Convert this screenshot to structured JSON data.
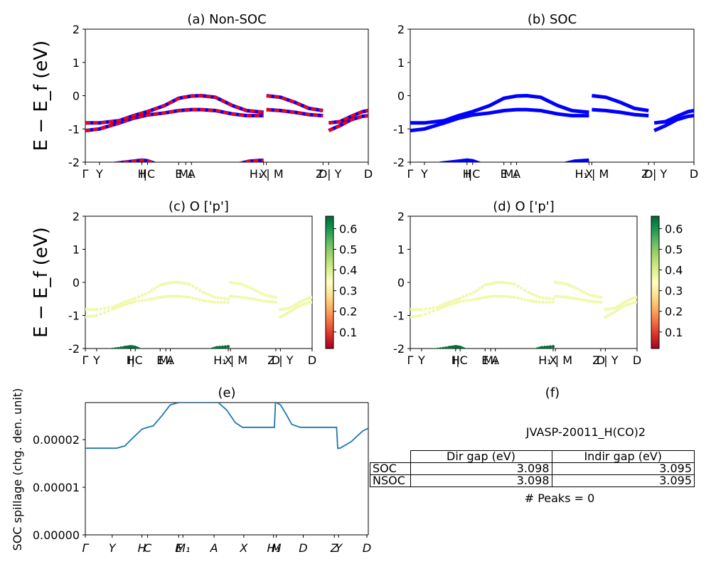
{
  "colors": {
    "blue": "#0000ff",
    "red": "#ff0000",
    "line": "#1f77b4"
  },
  "chart_data": [
    {
      "id": "a",
      "type": "line",
      "title": "(a) Non-SOC",
      "ylabel": "E − E_f (eV)",
      "ylim": [
        -2,
        2
      ],
      "yticks": [
        -2,
        -1,
        0,
        1,
        2
      ],
      "xlim": [
        0,
        10
      ],
      "xticks": [
        {
          "x": 0,
          "label": "Γ"
        },
        {
          "x": 0.5,
          "label": "Y"
        },
        {
          "x": 2.0,
          "label": "H"
        },
        {
          "x": 2.2,
          "label": "I|C"
        },
        {
          "x": 3.3,
          "label": "E"
        },
        {
          "x": 3.55,
          "label": "M₁"
        },
        {
          "x": 3.75,
          "label": "A"
        },
        {
          "x": 6.3,
          "label": "X"
        },
        {
          "x": 6.4,
          "label": "H₁ | M"
        },
        {
          "x": 8.4,
          "label": "D"
        },
        {
          "x": 8.6,
          "label": "Z | Y"
        },
        {
          "x": 10,
          "label": "D"
        }
      ],
      "segments": [
        {
          "x0": 0,
          "x1": 6.3,
          "series": [
            {
              "name": "band-1",
              "x": [
                0,
                0.5,
                1.2,
                1.7,
                2.2,
                2.8,
                3.3,
                3.75,
                4.1,
                4.6,
                5.2,
                5.7,
                6.3
              ],
              "y": [
                -1.05,
                -1.0,
                -0.82,
                -0.68,
                -0.58,
                -0.52,
                -0.45,
                -0.42,
                -0.42,
                -0.45,
                -0.55,
                -0.6,
                -0.6
              ]
            },
            {
              "name": "band-2",
              "x": [
                0,
                0.5,
                1.2,
                1.7,
                2.2,
                2.8,
                3.3,
                3.75,
                4.1,
                4.6,
                5.2,
                5.7,
                6.3
              ],
              "y": [
                -0.82,
                -0.82,
                -0.75,
                -0.6,
                -0.48,
                -0.3,
                -0.08,
                -0.01,
                0.0,
                -0.05,
                -0.3,
                -0.45,
                -0.5
              ]
            },
            {
              "name": "band-3",
              "x": [
                0,
                0.5,
                1.2,
                1.7,
                2.0,
                2.2,
                2.5
              ],
              "y": [
                -2.2,
                -2.1,
                -2.02,
                -1.97,
                -1.94,
                -1.96,
                -2.05
              ]
            },
            {
              "name": "band-4",
              "x": [
                5.4,
                5.8,
                6.3
              ],
              "y": [
                -2.05,
                -1.97,
                -1.94
              ]
            }
          ]
        },
        {
          "x0": 6.4,
          "x1": 8.4,
          "series": [
            {
              "name": "band-1",
              "x": [
                6.4,
                6.9,
                7.4,
                7.9,
                8.4
              ],
              "y": [
                0.0,
                -0.05,
                -0.2,
                -0.38,
                -0.45
              ]
            },
            {
              "name": "band-2",
              "x": [
                6.4,
                6.9,
                7.4,
                7.9,
                8.4
              ],
              "y": [
                -0.42,
                -0.45,
                -0.5,
                -0.57,
                -0.6
              ]
            }
          ]
        },
        {
          "x0": 8.6,
          "x1": 10,
          "series": [
            {
              "name": "band-1",
              "x": [
                8.6,
                9.0,
                9.4,
                9.8,
                10
              ],
              "y": [
                -0.82,
                -0.78,
                -0.62,
                -0.48,
                -0.45
              ]
            },
            {
              "name": "band-2",
              "x": [
                8.6,
                9.0,
                9.4,
                9.8,
                10
              ],
              "y": [
                -1.05,
                -0.9,
                -0.72,
                -0.62,
                -0.6
              ]
            }
          ]
        }
      ],
      "style": "dashed-red-on-blue"
    },
    {
      "id": "b",
      "type": "line",
      "title": "(b) SOC",
      "ylim": [
        -2,
        2
      ],
      "yticks": [
        -2,
        -1,
        0,
        1,
        2
      ],
      "xlim": [
        0,
        10
      ],
      "xticks": [
        {
          "x": 0,
          "label": "Γ"
        },
        {
          "x": 0.5,
          "label": "Y"
        },
        {
          "x": 2.0,
          "label": "H"
        },
        {
          "x": 2.2,
          "label": "I|C"
        },
        {
          "x": 3.3,
          "label": "E"
        },
        {
          "x": 3.55,
          "label": "M₁"
        },
        {
          "x": 3.75,
          "label": "A"
        },
        {
          "x": 6.3,
          "label": "X"
        },
        {
          "x": 6.4,
          "label": "H₁ | M"
        },
        {
          "x": 8.4,
          "label": "D"
        },
        {
          "x": 8.6,
          "label": "Z | Y"
        },
        {
          "x": 10,
          "label": "D"
        }
      ],
      "style": "blue",
      "same_bands_as": "a"
    },
    {
      "id": "c",
      "type": "scatter",
      "title": "(c)  O ['p']",
      "ylabel": "E − E_f (eV)",
      "ylim": [
        -2,
        2
      ],
      "yticks": [
        -2,
        -1,
        0,
        1,
        2
      ],
      "xlim": [
        0,
        10
      ],
      "xticks": [
        {
          "x": 0,
          "label": "Γ"
        },
        {
          "x": 0.5,
          "label": "Y"
        },
        {
          "x": 2.0,
          "label": "H"
        },
        {
          "x": 2.2,
          "label": "I|C"
        },
        {
          "x": 3.3,
          "label": "E"
        },
        {
          "x": 3.55,
          "label": "M₁"
        },
        {
          "x": 3.75,
          "label": "A"
        },
        {
          "x": 6.3,
          "label": "X"
        },
        {
          "x": 6.4,
          "label": "H₁ | M"
        },
        {
          "x": 8.4,
          "label": "D"
        },
        {
          "x": 8.6,
          "label": "Z | Y"
        },
        {
          "x": 10,
          "label": "D"
        }
      ],
      "colorbar": {
        "cmap": "RdYlGn",
        "range": [
          0.02,
          0.66
        ],
        "ticks": [
          0.1,
          0.2,
          0.3,
          0.4,
          0.5,
          0.6
        ]
      },
      "weights": {
        "valence": 0.5,
        "deep": 0.65
      },
      "same_bands_as": "a"
    },
    {
      "id": "d",
      "type": "scatter",
      "title": "(d) O ['p']",
      "ylim": [
        -2,
        2
      ],
      "yticks": [
        -2,
        -1,
        0,
        1,
        2
      ],
      "xlim": [
        0,
        10
      ],
      "xticks": [
        {
          "x": 0,
          "label": "Γ"
        },
        {
          "x": 0.5,
          "label": "Y"
        },
        {
          "x": 2.0,
          "label": "H"
        },
        {
          "x": 2.2,
          "label": "I|C"
        },
        {
          "x": 3.3,
          "label": "E"
        },
        {
          "x": 3.55,
          "label": "M₁"
        },
        {
          "x": 3.75,
          "label": "A"
        },
        {
          "x": 6.3,
          "label": "X"
        },
        {
          "x": 6.4,
          "label": "H₁ | M"
        },
        {
          "x": 8.4,
          "label": "D"
        },
        {
          "x": 8.6,
          "label": "Z | Y"
        },
        {
          "x": 10,
          "label": "D"
        }
      ],
      "colorbar": {
        "cmap": "RdYlGn",
        "range": [
          0.02,
          0.66
        ],
        "ticks": [
          0.1,
          0.2,
          0.3,
          0.4,
          0.5,
          0.6
        ]
      },
      "weights": {
        "valence": 0.5,
        "deep": 0.65
      },
      "same_bands_as": "a"
    },
    {
      "id": "e",
      "type": "line",
      "title": "(e)",
      "ylabel": "SOC spillage (chg. den. unit)",
      "ylim": [
        0,
        2.78e-05
      ],
      "yticks": [
        0,
        1e-05,
        2e-05
      ],
      "ytick_labels": [
        "0.00000",
        "0.00001",
        "0.00002"
      ],
      "xlim": [
        0,
        10
      ],
      "xticks": [
        {
          "x": 0,
          "label": "Γ"
        },
        {
          "x": 0.95,
          "label": "Y"
        },
        {
          "x": 2.0,
          "label": "H"
        },
        {
          "x": 2.2,
          "label": "C"
        },
        {
          "x": 3.3,
          "label": "E"
        },
        {
          "x": 3.45,
          "label": "M₁"
        },
        {
          "x": 4.55,
          "label": "A"
        },
        {
          "x": 5.6,
          "label": "X"
        },
        {
          "x": 6.65,
          "label": "H₁"
        },
        {
          "x": 6.75,
          "label": "M"
        },
        {
          "x": 7.7,
          "label": "D"
        },
        {
          "x": 8.8,
          "label": "Z"
        },
        {
          "x": 8.95,
          "label": "Y"
        },
        {
          "x": 9.95,
          "label": "D"
        }
      ],
      "series": [
        {
          "x": [
            0,
            0.6,
            1.1,
            1.4,
            1.7,
            2.0,
            2.2,
            2.4,
            2.7,
            3.0,
            3.3,
            3.8,
            4.2,
            4.7,
            5.0,
            5.3,
            5.55,
            5.8,
            6.1,
            6.4,
            6.68,
            6.72,
            6.9,
            7.1,
            7.3,
            7.6,
            8.0,
            8.5,
            8.88,
            8.92,
            9.0,
            9.4,
            9.8,
            10
          ],
          "y": [
            1.82e-05,
            1.82e-05,
            1.82e-05,
            1.87e-05,
            2.05e-05,
            2.22e-05,
            2.26e-05,
            2.29e-05,
            2.5e-05,
            2.73e-05,
            2.78e-05,
            2.78e-05,
            2.78e-05,
            2.78e-05,
            2.62e-05,
            2.36e-05,
            2.26e-05,
            2.26e-05,
            2.26e-05,
            2.26e-05,
            2.26e-05,
            2.79e-05,
            2.73e-05,
            2.53e-05,
            2.32e-05,
            2.26e-05,
            2.26e-05,
            2.26e-05,
            2.26e-05,
            1.82e-05,
            1.82e-05,
            1.96e-05,
            2.18e-05,
            2.24e-05
          ]
        }
      ]
    }
  ],
  "panel_f": {
    "title": "(f)",
    "material": "JVASP-20011_H(CO)2",
    "table": {
      "header": [
        "",
        "Dir gap (eV)",
        "Indir gap (eV)"
      ],
      "rows": [
        {
          "label": "SOC",
          "dir": "3.098",
          "indir": "3.095"
        },
        {
          "label": "NSOC",
          "dir": "3.098",
          "indir": "3.095"
        }
      ]
    },
    "peaks": "# Peaks = 0"
  }
}
